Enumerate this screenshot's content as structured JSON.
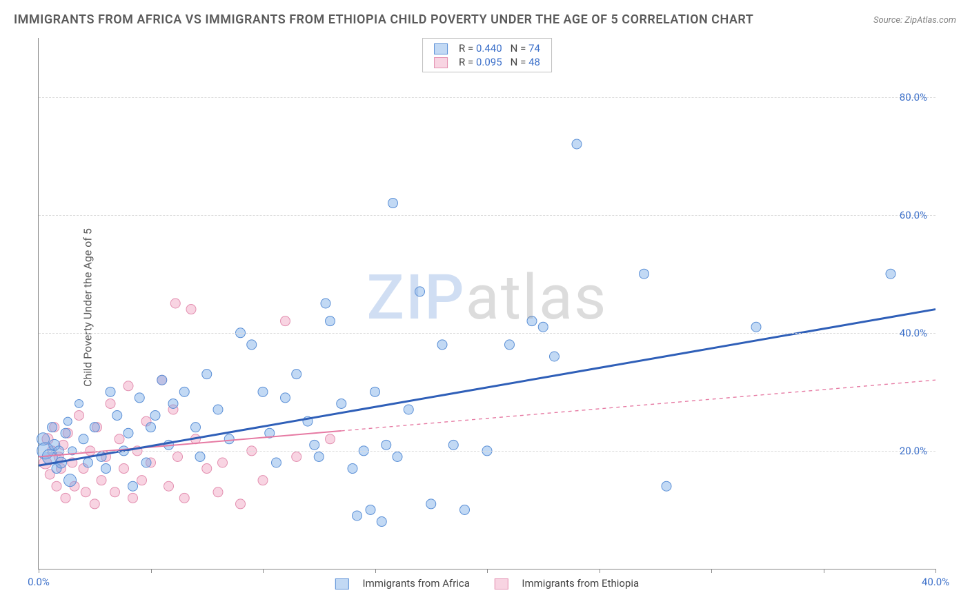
{
  "title": "IMMIGRANTS FROM AFRICA VS IMMIGRANTS FROM ETHIOPIA CHILD POVERTY UNDER THE AGE OF 5 CORRELATION CHART",
  "source": "Source: ZipAtlas.com",
  "ylabel": "Child Poverty Under the Age of 5",
  "watermark_a": "ZIP",
  "watermark_b": "atlas",
  "chart": {
    "type": "scatter",
    "xlim": [
      0,
      40
    ],
    "ylim": [
      0,
      90
    ],
    "xticks": [
      0,
      5,
      10,
      15,
      20,
      25,
      30,
      35,
      40
    ],
    "xtick_labels": {
      "0": "0.0%",
      "40": "40.0%"
    },
    "yticks": [
      20,
      40,
      60,
      80
    ],
    "ytick_labels": {
      "20": "20.0%",
      "40": "40.0%",
      "60": "60.0%",
      "80": "80.0%"
    },
    "plot_bg": "#ffffff",
    "grid_color": "#dcdcdc",
    "axis_color": "#888888",
    "tick_label_color": "#3b6fc9",
    "marker_radius_default": 7
  },
  "series_a": {
    "name": "Immigrants from Africa",
    "color_fill": "rgba(120,170,230,0.45)",
    "color_stroke": "#5a8fd6",
    "trend_color": "#2f5fb8",
    "trend_width": 3,
    "trend_solid_xmax": 40,
    "trend_start_y": 17.5,
    "trend_end_y": 44.0,
    "R": "0.440",
    "N": "74",
    "data": [
      [
        0.2,
        22,
        9
      ],
      [
        0.3,
        20,
        12
      ],
      [
        0.5,
        19,
        11
      ],
      [
        0.6,
        24,
        7
      ],
      [
        0.7,
        21,
        8
      ],
      [
        0.8,
        17,
        7
      ],
      [
        0.9,
        20,
        7
      ],
      [
        1.0,
        18,
        8
      ],
      [
        1.2,
        23,
        7
      ],
      [
        1.3,
        25,
        6
      ],
      [
        1.4,
        15,
        9
      ],
      [
        1.5,
        20,
        6
      ],
      [
        1.8,
        28,
        6
      ],
      [
        2.0,
        22,
        7
      ],
      [
        2.2,
        18,
        7
      ],
      [
        2.5,
        24,
        7
      ],
      [
        2.8,
        19,
        7
      ],
      [
        3.0,
        17,
        7
      ],
      [
        3.2,
        30,
        7
      ],
      [
        3.5,
        26,
        7
      ],
      [
        3.8,
        20,
        7
      ],
      [
        4.0,
        23,
        7
      ],
      [
        4.2,
        14,
        7
      ],
      [
        4.5,
        29,
        7
      ],
      [
        4.8,
        18,
        7
      ],
      [
        5.0,
        24,
        7
      ],
      [
        5.2,
        26,
        7
      ],
      [
        5.5,
        32,
        7
      ],
      [
        5.8,
        21,
        7
      ],
      [
        6.0,
        28,
        7
      ],
      [
        6.5,
        30,
        7
      ],
      [
        7.0,
        24,
        7
      ],
      [
        7.2,
        19,
        7
      ],
      [
        7.5,
        33,
        7
      ],
      [
        8.0,
        27,
        7
      ],
      [
        8.5,
        22,
        7
      ],
      [
        9.0,
        40,
        7
      ],
      [
        9.5,
        38,
        7
      ],
      [
        10.0,
        30,
        7
      ],
      [
        10.3,
        23,
        7
      ],
      [
        10.6,
        18,
        7
      ],
      [
        11.0,
        29,
        7
      ],
      [
        11.5,
        33,
        7
      ],
      [
        12.0,
        25,
        7
      ],
      [
        12.3,
        21,
        7
      ],
      [
        12.5,
        19,
        7
      ],
      [
        12.8,
        45,
        7
      ],
      [
        13.0,
        42,
        7
      ],
      [
        13.5,
        28,
        7
      ],
      [
        14.0,
        17,
        7
      ],
      [
        14.2,
        9,
        7
      ],
      [
        14.5,
        20,
        7
      ],
      [
        14.8,
        10,
        7
      ],
      [
        15.0,
        30,
        7
      ],
      [
        15.3,
        8,
        7
      ],
      [
        15.5,
        21,
        7
      ],
      [
        15.8,
        62,
        7
      ],
      [
        16.0,
        19,
        7
      ],
      [
        16.5,
        27,
        7
      ],
      [
        17.0,
        47,
        7
      ],
      [
        17.5,
        11,
        7
      ],
      [
        18.0,
        38,
        7
      ],
      [
        18.5,
        21,
        7
      ],
      [
        19.0,
        10,
        7
      ],
      [
        20.0,
        20,
        7
      ],
      [
        21.0,
        38,
        7
      ],
      [
        22.0,
        42,
        7
      ],
      [
        22.5,
        41,
        7
      ],
      [
        23.0,
        36,
        7
      ],
      [
        24.0,
        72,
        7
      ],
      [
        27.0,
        50,
        7
      ],
      [
        28.0,
        14,
        7
      ],
      [
        32.0,
        41,
        7
      ],
      [
        38.0,
        50,
        7
      ]
    ]
  },
  "series_b": {
    "name": "Immigrants from Ethiopia",
    "color_fill": "rgba(240,160,190,0.45)",
    "color_stroke": "#e38fb0",
    "trend_color": "#e67aa3",
    "trend_width": 2,
    "trend_solid_xmax": 13.5,
    "trend_dash": "5,5",
    "trend_start_y": 19.0,
    "trend_end_y": 32.0,
    "R": "0.095",
    "N": "48",
    "data": [
      [
        0.3,
        18,
        9
      ],
      [
        0.4,
        22,
        8
      ],
      [
        0.5,
        16,
        7
      ],
      [
        0.6,
        20,
        7
      ],
      [
        0.7,
        24,
        7
      ],
      [
        0.8,
        14,
        7
      ],
      [
        0.9,
        19,
        7
      ],
      [
        1.0,
        17,
        7
      ],
      [
        1.1,
        21,
        7
      ],
      [
        1.2,
        12,
        7
      ],
      [
        1.3,
        23,
        7
      ],
      [
        1.5,
        18,
        7
      ],
      [
        1.6,
        14,
        7
      ],
      [
        1.8,
        26,
        7
      ],
      [
        2.0,
        17,
        7
      ],
      [
        2.1,
        13,
        7
      ],
      [
        2.3,
        20,
        7
      ],
      [
        2.5,
        11,
        7
      ],
      [
        2.6,
        24,
        7
      ],
      [
        2.8,
        15,
        7
      ],
      [
        3.0,
        19,
        7
      ],
      [
        3.2,
        28,
        7
      ],
      [
        3.4,
        13,
        7
      ],
      [
        3.6,
        22,
        7
      ],
      [
        3.8,
        17,
        7
      ],
      [
        4.0,
        31,
        7
      ],
      [
        4.2,
        12,
        7
      ],
      [
        4.4,
        20,
        7
      ],
      [
        4.6,
        15,
        7
      ],
      [
        4.8,
        25,
        7
      ],
      [
        5.0,
        18,
        7
      ],
      [
        5.5,
        32,
        7
      ],
      [
        5.8,
        14,
        7
      ],
      [
        6.0,
        27,
        7
      ],
      [
        6.1,
        45,
        7
      ],
      [
        6.2,
        19,
        7
      ],
      [
        6.5,
        12,
        7
      ],
      [
        6.8,
        44,
        7
      ],
      [
        7.0,
        22,
        7
      ],
      [
        7.5,
        17,
        7
      ],
      [
        8.0,
        13,
        7
      ],
      [
        8.2,
        18,
        7
      ],
      [
        9.0,
        11,
        7
      ],
      [
        9.5,
        20,
        7
      ],
      [
        10.0,
        15,
        7
      ],
      [
        11.0,
        42,
        7
      ],
      [
        11.5,
        19,
        7
      ],
      [
        13.0,
        22,
        7
      ]
    ]
  },
  "legend_top": {
    "r_label": "R =",
    "n_label": "N ="
  },
  "legend_bottom_a": "Immigrants from Africa",
  "legend_bottom_b": "Immigrants from Ethiopia"
}
